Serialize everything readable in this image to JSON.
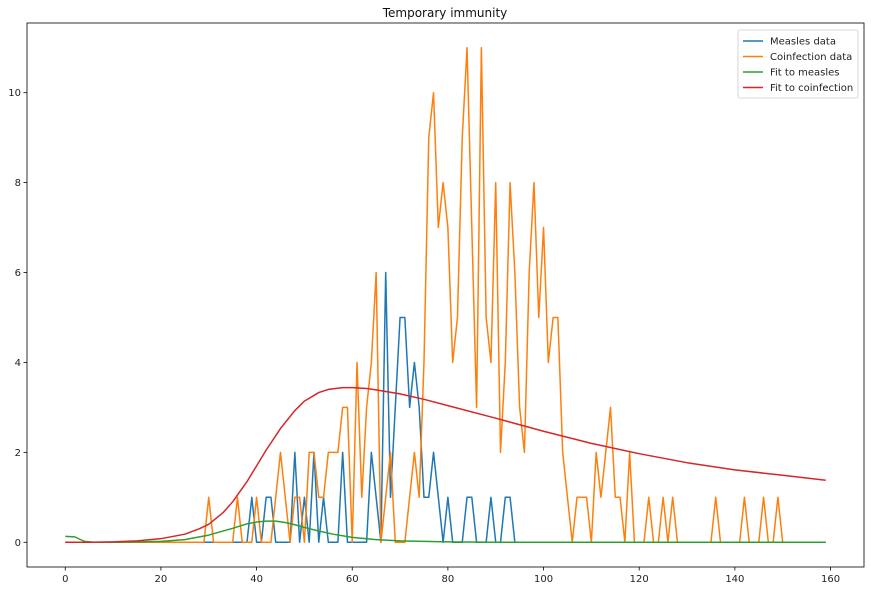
{
  "chart_data": {
    "type": "line",
    "title": "Temporary immunity",
    "xlabel": "",
    "ylabel": "",
    "xlim": [
      -8,
      167
    ],
    "ylim": [
      -0.55,
      11.55
    ],
    "xticks": [
      "0",
      "20",
      "40",
      "60",
      "80",
      "100",
      "120",
      "140",
      "160"
    ],
    "yticks": [
      "0",
      "2",
      "4",
      "6",
      "8",
      "10"
    ],
    "grid": false,
    "legend_position": "top-right",
    "series": [
      {
        "name": "Measles data",
        "color": "#1f77b4",
        "points": [
          [
            0,
            0
          ],
          [
            36,
            0
          ],
          [
            37,
            0
          ],
          [
            38,
            0
          ],
          [
            39,
            1
          ],
          [
            40,
            0
          ],
          [
            41,
            0
          ],
          [
            42,
            1
          ],
          [
            43,
            1
          ],
          [
            44,
            0
          ],
          [
            45,
            0
          ],
          [
            46,
            0
          ],
          [
            47,
            0
          ],
          [
            48,
            2
          ],
          [
            49,
            0
          ],
          [
            50,
            1
          ],
          [
            51,
            0
          ],
          [
            52,
            2
          ],
          [
            53,
            0
          ],
          [
            54,
            1
          ],
          [
            55,
            0
          ],
          [
            56,
            0
          ],
          [
            57,
            0
          ],
          [
            58,
            2
          ],
          [
            59,
            0
          ],
          [
            60,
            0
          ],
          [
            61,
            0
          ],
          [
            62,
            0
          ],
          [
            63,
            0
          ],
          [
            64,
            2
          ],
          [
            65,
            1
          ],
          [
            66,
            0
          ],
          [
            67,
            6
          ],
          [
            68,
            1
          ],
          [
            69,
            3
          ],
          [
            70,
            5
          ],
          [
            71,
            5
          ],
          [
            72,
            3
          ],
          [
            73,
            4
          ],
          [
            74,
            3
          ],
          [
            75,
            1
          ],
          [
            76,
            1
          ],
          [
            77,
            2
          ],
          [
            78,
            1
          ],
          [
            79,
            0
          ],
          [
            80,
            1
          ],
          [
            81,
            0
          ],
          [
            82,
            0
          ],
          [
            83,
            0
          ],
          [
            84,
            1
          ],
          [
            85,
            1
          ],
          [
            86,
            0
          ],
          [
            87,
            0
          ],
          [
            88,
            0
          ],
          [
            89,
            1
          ],
          [
            90,
            0
          ],
          [
            91,
            0
          ],
          [
            92,
            1
          ],
          [
            93,
            1
          ],
          [
            94,
            0
          ],
          [
            159,
            0
          ]
        ]
      },
      {
        "name": "Coinfection data",
        "color": "#ff7f0e",
        "points": [
          [
            0,
            0
          ],
          [
            29,
            0
          ],
          [
            30,
            1
          ],
          [
            31,
            0
          ],
          [
            35,
            0
          ],
          [
            36,
            1
          ],
          [
            37,
            0
          ],
          [
            39,
            0
          ],
          [
            40,
            1
          ],
          [
            41,
            0
          ],
          [
            42,
            0
          ],
          [
            43,
            0
          ],
          [
            44,
            1
          ],
          [
            45,
            2
          ],
          [
            46,
            1
          ],
          [
            47,
            0
          ],
          [
            48,
            1
          ],
          [
            49,
            1
          ],
          [
            50,
            0
          ],
          [
            51,
            2
          ],
          [
            52,
            2
          ],
          [
            53,
            1
          ],
          [
            54,
            1
          ],
          [
            55,
            2
          ],
          [
            56,
            2
          ],
          [
            57,
            2
          ],
          [
            58,
            3
          ],
          [
            59,
            3
          ],
          [
            60,
            0
          ],
          [
            61,
            4
          ],
          [
            62,
            1
          ],
          [
            63,
            3
          ],
          [
            64,
            4
          ],
          [
            65,
            6
          ],
          [
            66,
            0
          ],
          [
            67,
            1
          ],
          [
            68,
            2
          ],
          [
            69,
            0
          ],
          [
            70,
            0
          ],
          [
            71,
            0
          ],
          [
            72,
            1
          ],
          [
            73,
            2
          ],
          [
            74,
            1
          ],
          [
            75,
            4
          ],
          [
            76,
            9
          ],
          [
            77,
            10
          ],
          [
            78,
            7
          ],
          [
            79,
            8
          ],
          [
            80,
            7
          ],
          [
            81,
            4
          ],
          [
            82,
            5
          ],
          [
            83,
            9
          ],
          [
            84,
            11
          ],
          [
            85,
            7
          ],
          [
            86,
            3
          ],
          [
            87,
            11
          ],
          [
            88,
            5
          ],
          [
            89,
            4
          ],
          [
            90,
            8
          ],
          [
            91,
            2
          ],
          [
            92,
            4
          ],
          [
            93,
            8
          ],
          [
            94,
            6
          ],
          [
            95,
            3
          ],
          [
            96,
            2
          ],
          [
            97,
            6
          ],
          [
            98,
            8
          ],
          [
            99,
            5
          ],
          [
            100,
            7
          ],
          [
            101,
            4
          ],
          [
            102,
            5
          ],
          [
            103,
            5
          ],
          [
            104,
            2
          ],
          [
            105,
            1
          ],
          [
            106,
            0
          ],
          [
            107,
            1
          ],
          [
            108,
            1
          ],
          [
            109,
            1
          ],
          [
            110,
            0
          ],
          [
            111,
            2
          ],
          [
            112,
            1
          ],
          [
            113,
            2
          ],
          [
            114,
            3
          ],
          [
            115,
            1
          ],
          [
            116,
            1
          ],
          [
            117,
            0
          ],
          [
            118,
            2
          ],
          [
            119,
            0
          ],
          [
            120,
            0
          ],
          [
            121,
            0
          ],
          [
            122,
            1
          ],
          [
            123,
            0
          ],
          [
            124,
            0
          ],
          [
            125,
            1
          ],
          [
            126,
            0
          ],
          [
            127,
            1
          ],
          [
            128,
            0
          ],
          [
            135,
            0
          ],
          [
            136,
            1
          ],
          [
            137,
            0
          ],
          [
            141,
            0
          ],
          [
            142,
            1
          ],
          [
            143,
            0
          ],
          [
            145,
            0
          ],
          [
            146,
            1
          ],
          [
            147,
            0
          ],
          [
            148,
            0
          ],
          [
            149,
            1
          ],
          [
            150,
            0
          ],
          [
            159,
            0
          ]
        ]
      },
      {
        "name": "Fit to measles",
        "color": "#2ca02c",
        "points": [
          [
            0,
            0.13
          ],
          [
            2,
            0.12
          ],
          [
            4,
            0.02
          ],
          [
            6,
            0.0
          ],
          [
            10,
            0.0
          ],
          [
            15,
            0.01
          ],
          [
            20,
            0.02
          ],
          [
            25,
            0.06
          ],
          [
            30,
            0.16
          ],
          [
            35,
            0.31
          ],
          [
            38,
            0.41
          ],
          [
            40,
            0.45
          ],
          [
            42,
            0.47
          ],
          [
            44,
            0.47
          ],
          [
            46,
            0.44
          ],
          [
            48,
            0.39
          ],
          [
            50,
            0.33
          ],
          [
            53,
            0.25
          ],
          [
            56,
            0.18
          ],
          [
            60,
            0.11
          ],
          [
            65,
            0.06
          ],
          [
            70,
            0.03
          ],
          [
            75,
            0.02
          ],
          [
            80,
            0.01
          ],
          [
            90,
            0.0
          ],
          [
            159,
            0.0
          ]
        ]
      },
      {
        "name": "Fit to coinfection",
        "color": "#d62728",
        "points": [
          [
            0,
            0.0
          ],
          [
            5,
            0.0
          ],
          [
            10,
            0.01
          ],
          [
            15,
            0.03
          ],
          [
            20,
            0.08
          ],
          [
            25,
            0.18
          ],
          [
            28,
            0.3
          ],
          [
            30,
            0.4
          ],
          [
            33,
            0.66
          ],
          [
            35,
            0.9
          ],
          [
            38,
            1.35
          ],
          [
            40,
            1.7
          ],
          [
            42,
            2.05
          ],
          [
            45,
            2.53
          ],
          [
            48,
            2.93
          ],
          [
            50,
            3.14
          ],
          [
            53,
            3.33
          ],
          [
            55,
            3.4
          ],
          [
            58,
            3.44
          ],
          [
            60,
            3.44
          ],
          [
            63,
            3.42
          ],
          [
            65,
            3.39
          ],
          [
            70,
            3.3
          ],
          [
            75,
            3.18
          ],
          [
            80,
            3.04
          ],
          [
            90,
            2.76
          ],
          [
            100,
            2.47
          ],
          [
            110,
            2.2
          ],
          [
            120,
            1.97
          ],
          [
            130,
            1.77
          ],
          [
            140,
            1.61
          ],
          [
            150,
            1.49
          ],
          [
            159,
            1.38
          ]
        ]
      }
    ]
  }
}
